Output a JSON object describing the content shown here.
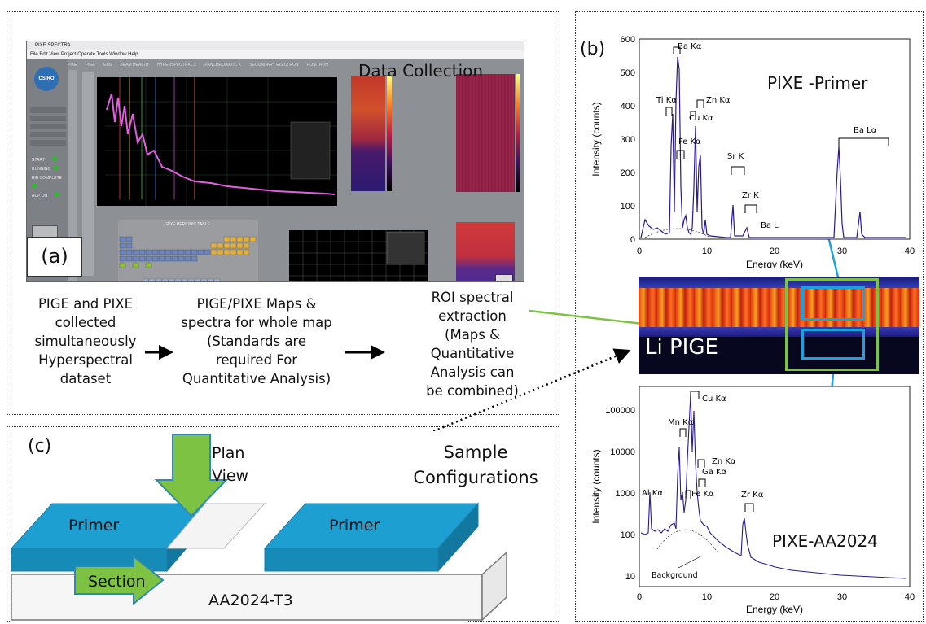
{
  "panel_a": {
    "panel_label": "(a)",
    "heading": "Data Collection",
    "window_title": "PIXE SPECTRA",
    "menu": "File  Edit  View  Project  Operate  Tools  Window  Help",
    "tabs": [
      "PIXE",
      "PIGE",
      "EBS",
      "BEAM HEALTH",
      "HYPERSPECTRAL X",
      "PANCHROMATIC X",
      "SECONDARY ELECTRON",
      "POSITRON"
    ],
    "periodic_table_label": "PIXE PERIODIC TABLE",
    "logo_text": "CSIRO",
    "side_labels": [
      "START",
      "RUNNING",
      "BIB COMPLETE",
      "AUP ON"
    ],
    "steps": [
      "PIGE and PIXE collected simultaneously Hyperspectral dataset",
      "PIGE/PIXE Maps & spectra for whole map (Standards are required For Quantitative Analysis)",
      "ROI spectral extraction (Maps & Quantitative Analysis can be combined)"
    ]
  },
  "panel_b": {
    "panel_label": "(b)",
    "map_label": "Li PIGE",
    "top_spectrum": {
      "title": "PIXE -Primer",
      "ylabel": "Intensity (counts)",
      "xlabel": "Energy (keV)",
      "xticks": [
        "0",
        "10",
        "20",
        "30",
        "40"
      ],
      "yticks": [
        "0",
        "100",
        "200",
        "300",
        "400",
        "500",
        "600"
      ],
      "peaks": [
        "Ba Kα",
        "Ti Kα",
        "Zn Kα",
        "Cu Kα",
        "Fe Kα",
        "Sr K",
        "Zr K",
        "Ba L",
        "Ba Lα"
      ]
    },
    "bottom_spectrum": {
      "title": "PIXE-AA2024",
      "ylabel": "Intensity (counts)",
      "xlabel": "Energy (keV)",
      "xticks": [
        "0",
        "10",
        "20",
        "30",
        "40"
      ],
      "yticks": [
        "10",
        "100",
        "1000",
        "10000",
        "100000"
      ],
      "peaks": [
        "Cu Kα",
        "Mn Kα",
        "Zn Kα",
        "Al Kα",
        "Ga Kα",
        "Fe Kα",
        "Zr Kα"
      ],
      "background_label": "Background"
    }
  },
  "panel_c": {
    "panel_label": "(c)",
    "heading": "Sample Configurations",
    "plan_view": "Plan View",
    "primer_left": "Primer",
    "primer_right": "Primer",
    "section": "Section",
    "substrate": "AA2024-T3"
  },
  "colors": {
    "blue_box": "#1ba1db",
    "green_arrow": "#7dc242",
    "spectrum_line": "#2a1a8f",
    "peak_line": "#8a1a5a"
  }
}
